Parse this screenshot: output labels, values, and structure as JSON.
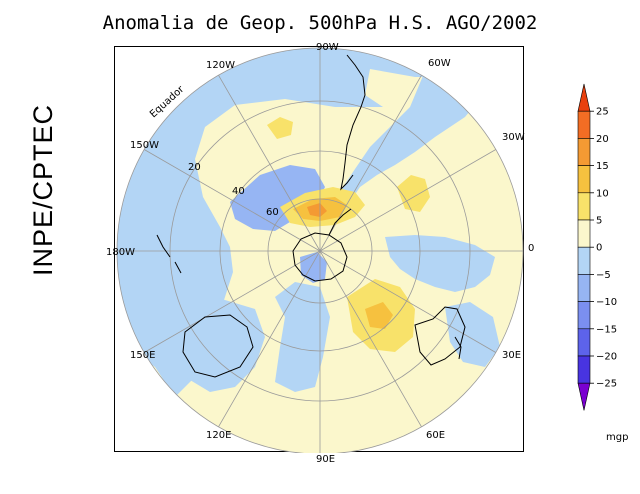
{
  "title": "Anomalia de Geop. 500hPa H.S. AGO/2002",
  "side_label": "INPE/CPTEC",
  "map": {
    "longitude_labels": [
      "90W",
      "60W",
      "30W",
      "0",
      "30E",
      "60E",
      "90E",
      "120E",
      "150E",
      "180W",
      "150W",
      "120W"
    ],
    "latitude_labels": [
      "Equador",
      "20",
      "40",
      "60"
    ]
  },
  "colorbar": {
    "ticks": [
      "25",
      "20",
      "15",
      "10",
      "5",
      "0",
      "−5",
      "−10",
      "−15",
      "−20",
      "−25"
    ],
    "colors": [
      "#e8400e",
      "#f26d24",
      "#f49a33",
      "#f6c13f",
      "#f8e26a",
      "#fbf7cc",
      "#b3d5f5",
      "#96b5f3",
      "#7b8ff0",
      "#5d63ea",
      "#4834e0",
      "#7a00d0"
    ],
    "unit": "mgp"
  }
}
